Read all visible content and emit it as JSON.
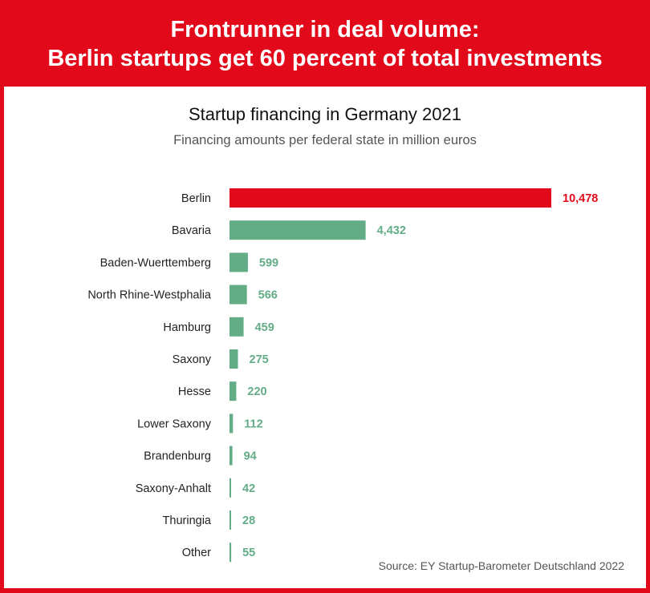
{
  "header": {
    "line1": "Frontrunner in deal volume:",
    "line2": "Berlin startups get 60 percent of total investments"
  },
  "source": "Source: EY Startup-Barometer Deutschland 2022",
  "colors": {
    "highlight": "#E20A1A",
    "bar": "#62AC86",
    "frame": "#E20A1A"
  },
  "chart_data": {
    "type": "bar",
    "orientation": "horizontal",
    "title": "Startup financing in Germany 2021",
    "subtitle": "Financing amounts per federal state in million euros",
    "categories": [
      "Berlin",
      "Bavaria",
      "Baden-Wuerttemberg",
      "North Rhine-Westphalia",
      "Hamburg",
      "Saxony",
      "Hesse",
      "Lower Saxony",
      "Brandenburg",
      "Saxony-Anhalt",
      "Thuringia",
      "Other"
    ],
    "values": [
      10478,
      4432,
      599,
      566,
      459,
      275,
      220,
      112,
      94,
      42,
      28,
      55
    ],
    "value_labels": [
      "10,478",
      "4,432",
      "599",
      "566",
      "459",
      "275",
      "220",
      "112",
      "94",
      "42",
      "28",
      "55"
    ],
    "highlight": "Berlin",
    "grid": false
  }
}
